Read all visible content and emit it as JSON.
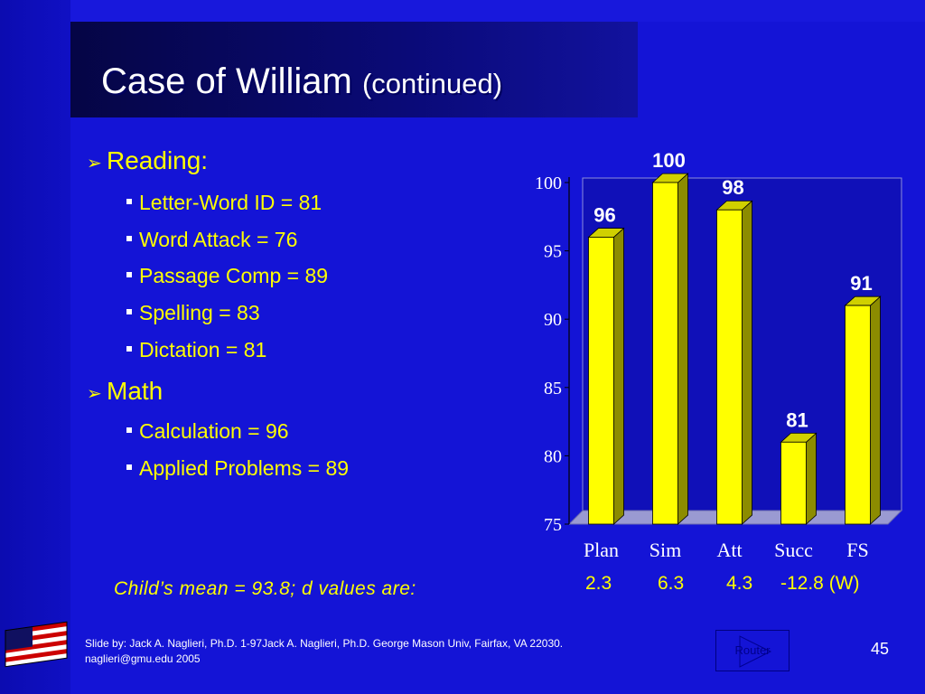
{
  "slide": {
    "title": "Case of William",
    "title_sub": "(continued)"
  },
  "sections": [
    {
      "heading": "Reading:",
      "items": [
        "Letter-Word ID = 81",
        "Word Attack = 76",
        "Passage Comp = 89",
        "Spelling = 83",
        "Dictation = 81"
      ]
    },
    {
      "heading": "Math",
      "items": [
        "Calculation = 96",
        "Applied Problems = 89"
      ]
    }
  ],
  "mean_note": "Child’s mean = 93.8; d values are:",
  "d_values": [
    "2.3",
    "6.3",
    "4.3",
    "-12.8 (W)"
  ],
  "chart_data": {
    "type": "bar",
    "categories": [
      "Plan",
      "Sim",
      "Att",
      "Succ",
      "FS"
    ],
    "values": [
      96,
      100,
      98,
      81,
      91
    ],
    "data_labels": [
      "96",
      "100",
      "98",
      "81",
      "91"
    ],
    "ylim": [
      75,
      100
    ],
    "yticks": [
      "75",
      "80",
      "85",
      "90",
      "95",
      "100"
    ],
    "grid": false,
    "bar_color": "#ffff00",
    "title": "",
    "xlabel": "",
    "ylabel": ""
  },
  "footer": {
    "line1": "Slide by: Jack A. Naglieri, Ph.D. 1-97Jack A. Naglieri, Ph.D.  George Mason Univ, Fairfax, VA 22030.",
    "line2": "naglieri@gmu.edu 2005"
  },
  "router_label": "Router",
  "page_number": "45",
  "colors": {
    "background": "#1414d6",
    "text_accent": "#ffff00",
    "title": "#ffffff"
  }
}
